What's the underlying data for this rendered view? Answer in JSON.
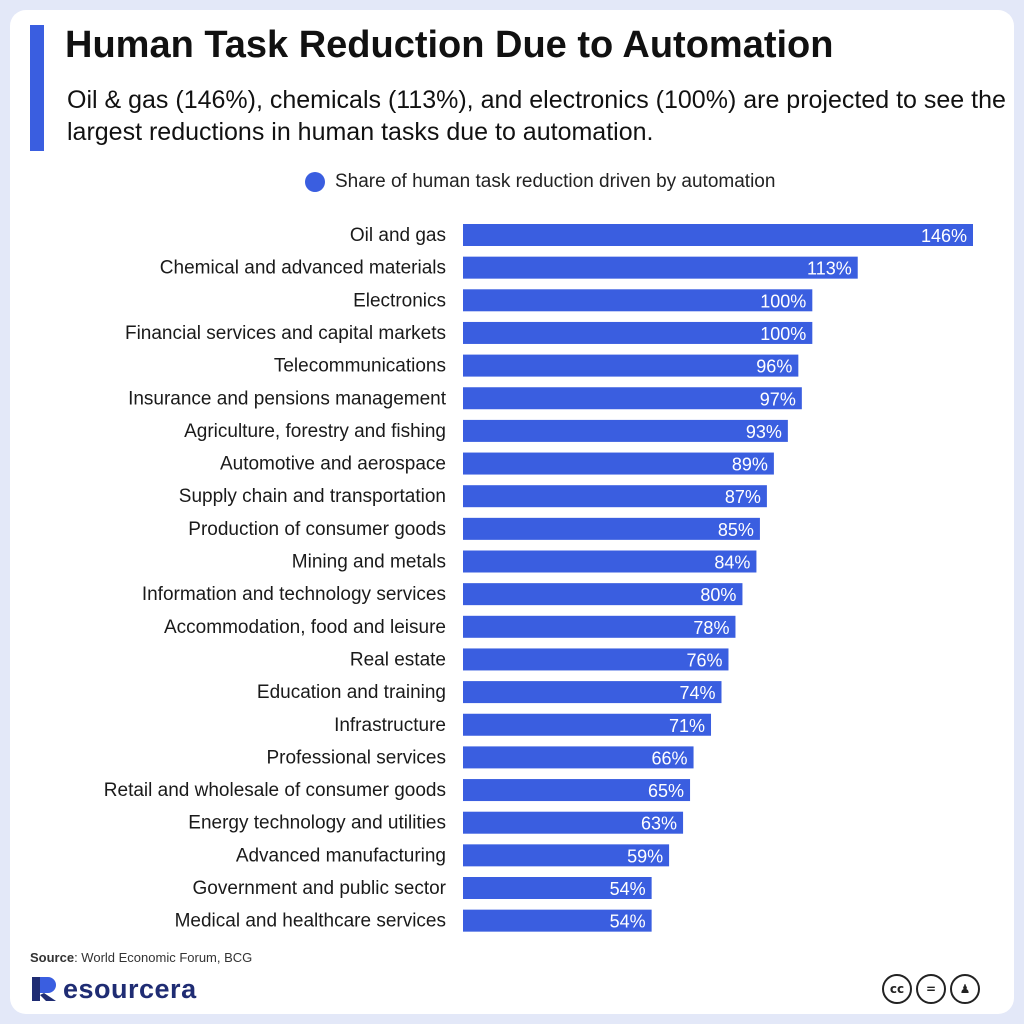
{
  "header": {
    "title": "Human Task Reduction Due to Automation",
    "subtitle": "Oil & gas (146%), chemicals (113%), and electronics (100%) are projected to see the largest reductions in human tasks due to automation."
  },
  "legend": {
    "label": "Share of human task reduction driven by automation"
  },
  "footer": {
    "source_label": "Source",
    "source_text": ": World Economic Forum, BCG",
    "brand": "Resourcera",
    "brand_text": "esourcera",
    "license_icons": [
      "cc-icon",
      "nd-icon",
      "by-icon"
    ]
  },
  "colors": {
    "bar": "#3a5ee0",
    "accent": "#3a5ee0",
    "brand": "#1f2c73"
  },
  "chart_data": {
    "type": "bar",
    "orientation": "horizontal",
    "title": "Human Task Reduction Due to Automation",
    "xlabel": "",
    "ylabel": "",
    "value_suffix": "%",
    "xlim": [
      0,
      150
    ],
    "grid": false,
    "legend_position": "top",
    "series": [
      {
        "name": "Share of human task reduction driven by automation"
      }
    ],
    "categories": [
      "Oil and gas",
      "Chemical and advanced materials",
      "Electronics",
      "Financial services and capital markets",
      "Telecommunications",
      "Insurance and pensions management",
      "Agriculture, forestry and fishing",
      "Automotive and aerospace",
      "Supply chain and transportation",
      "Production of consumer goods",
      "Mining and metals",
      "Information and technology services",
      "Accommodation, food and leisure",
      "Real estate",
      "Education and training",
      "Infrastructure",
      "Professional services",
      "Retail and wholesale of consumer goods",
      "Energy technology and utilities",
      "Advanced manufacturing",
      "Government and public sector",
      "Medical and healthcare services"
    ],
    "values": [
      146,
      113,
      100,
      100,
      96,
      97,
      93,
      89,
      87,
      85,
      84,
      80,
      78,
      76,
      74,
      71,
      66,
      65,
      63,
      59,
      54,
      54
    ]
  }
}
